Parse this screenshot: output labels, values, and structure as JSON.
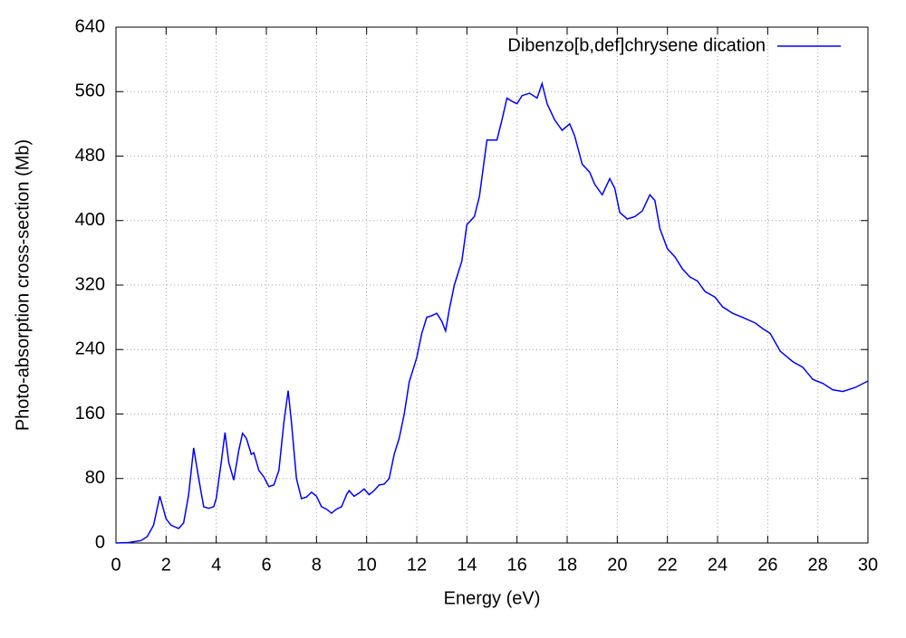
{
  "chart_data": {
    "type": "line",
    "xlabel": "Energy (eV)",
    "ylabel": "Photo-absorption cross-section (Mb)",
    "xlim": [
      0,
      30
    ],
    "ylim": [
      0,
      640
    ],
    "xticks": [
      0,
      2,
      4,
      6,
      8,
      10,
      12,
      14,
      16,
      18,
      20,
      22,
      24,
      26,
      28,
      30
    ],
    "yticks": [
      0,
      80,
      160,
      240,
      320,
      400,
      480,
      560,
      640
    ],
    "grid": true,
    "legend": "top right",
    "x": [
      0,
      0.5,
      1.0,
      1.25,
      1.5,
      1.75,
      2.0,
      2.2,
      2.5,
      2.7,
      2.9,
      3.1,
      3.3,
      3.5,
      3.7,
      3.9,
      4.0,
      4.2,
      4.35,
      4.5,
      4.7,
      4.9,
      5.05,
      5.2,
      5.4,
      5.5,
      5.7,
      5.9,
      6.1,
      6.3,
      6.5,
      6.7,
      6.87,
      7.0,
      7.2,
      7.4,
      7.6,
      7.8,
      8.0,
      8.2,
      8.4,
      8.6,
      8.8,
      9.0,
      9.2,
      9.3,
      9.5,
      9.7,
      9.9,
      10.1,
      10.3,
      10.5,
      10.7,
      10.9,
      11.1,
      11.3,
      11.5,
      11.7,
      12.0,
      12.2,
      12.4,
      12.6,
      12.8,
      13.0,
      13.15,
      13.3,
      13.5,
      13.8,
      14.0,
      14.3,
      14.5,
      14.8,
      15.0,
      15.2,
      15.4,
      15.6,
      15.8,
      16.0,
      16.2,
      16.5,
      16.8,
      17.0,
      17.2,
      17.5,
      17.8,
      18.1,
      18.3,
      18.6,
      18.9,
      19.1,
      19.4,
      19.7,
      19.9,
      20.1,
      20.4,
      20.7,
      21.0,
      21.3,
      21.5,
      21.7,
      22.0,
      22.3,
      22.6,
      22.9,
      23.2,
      23.5,
      23.9,
      24.2,
      24.6,
      25.0,
      25.5,
      25.8,
      26.1,
      26.5,
      27.0,
      27.4,
      27.8,
      28.2,
      28.6,
      29.0,
      29.5,
      30.0
    ],
    "series": [
      {
        "name": "Dibenzo[b,def]chrysene dication",
        "color": "#0000ff",
        "values": [
          0,
          0.5,
          3,
          8,
          22,
          58,
          30,
          22,
          18,
          25,
          60,
          118,
          80,
          45,
          43,
          45,
          55,
          100,
          137,
          100,
          78,
          115,
          136,
          130,
          110,
          112,
          90,
          82,
          70,
          72,
          90,
          150,
          189,
          150,
          80,
          55,
          57,
          63,
          58,
          45,
          42,
          37,
          42,
          45,
          60,
          65,
          58,
          62,
          67,
          60,
          65,
          72,
          73,
          80,
          110,
          130,
          160,
          200,
          230,
          260,
          280,
          282,
          285,
          275,
          263,
          290,
          320,
          350,
          395,
          405,
          430,
          500,
          500,
          500,
          525,
          552,
          548,
          545,
          555,
          558,
          552,
          570,
          545,
          525,
          512,
          520,
          505,
          470,
          460,
          445,
          432,
          452,
          440,
          410,
          402,
          405,
          412,
          432,
          425,
          390,
          365,
          355,
          340,
          330,
          325,
          312,
          305,
          293,
          285,
          280,
          273,
          266,
          260,
          238,
          225,
          218,
          203,
          198,
          190,
          188,
          193,
          201
        ]
      }
    ]
  }
}
